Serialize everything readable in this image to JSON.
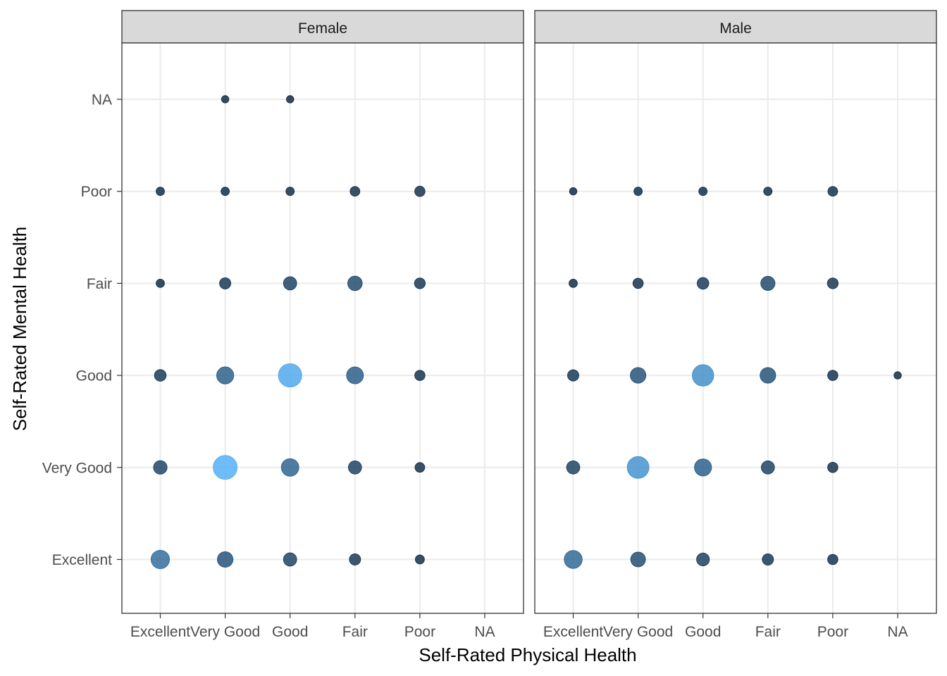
{
  "chart_data": {
    "type": "scatter",
    "xlabel": "Self-Rated Physical Health",
    "ylabel": "Self-Rated Mental Health",
    "x_categories": [
      "Excellent",
      "Very Good",
      "Good",
      "Fair",
      "Poor",
      "NA"
    ],
    "y_categories": [
      "Excellent",
      "Very Good",
      "Good",
      "Fair",
      "Poor",
      "NA"
    ],
    "grid": true,
    "legend": "none",
    "color_scale": {
      "low": "#132b43",
      "high": "#56b1f7"
    },
    "panels": [
      {
        "label": "Female",
        "points": [
          {
            "x": "Very Good",
            "y": "NA",
            "n": 1
          },
          {
            "x": "Good",
            "y": "NA",
            "n": 1
          },
          {
            "x": "Excellent",
            "y": "Poor",
            "n": 2
          },
          {
            "x": "Very Good",
            "y": "Poor",
            "n": 2
          },
          {
            "x": "Good",
            "y": "Poor",
            "n": 2
          },
          {
            "x": "Fair",
            "y": "Poor",
            "n": 4
          },
          {
            "x": "Poor",
            "y": "Poor",
            "n": 5
          },
          {
            "x": "Excellent",
            "y": "Fair",
            "n": 2
          },
          {
            "x": "Very Good",
            "y": "Fair",
            "n": 7
          },
          {
            "x": "Good",
            "y": "Fair",
            "n": 12
          },
          {
            "x": "Fair",
            "y": "Fair",
            "n": 16
          },
          {
            "x": "Poor",
            "y": "Fair",
            "n": 6
          },
          {
            "x": "Excellent",
            "y": "Good",
            "n": 8
          },
          {
            "x": "Very Good",
            "y": "Good",
            "n": 26
          },
          {
            "x": "Good",
            "y": "Good",
            "n": 60
          },
          {
            "x": "Fair",
            "y": "Good",
            "n": 25
          },
          {
            "x": "Poor",
            "y": "Good",
            "n": 5
          },
          {
            "x": "Excellent",
            "y": "Very Good",
            "n": 13
          },
          {
            "x": "Very Good",
            "y": "Very Good",
            "n": 64
          },
          {
            "x": "Good",
            "y": "Very Good",
            "n": 28
          },
          {
            "x": "Fair",
            "y": "Very Good",
            "n": 12
          },
          {
            "x": "Poor",
            "y": "Very Good",
            "n": 4
          },
          {
            "x": "Excellent",
            "y": "Excellent",
            "n": 32
          },
          {
            "x": "Very Good",
            "y": "Excellent",
            "n": 20
          },
          {
            "x": "Good",
            "y": "Excellent",
            "n": 12
          },
          {
            "x": "Fair",
            "y": "Excellent",
            "n": 7
          },
          {
            "x": "Poor",
            "y": "Excellent",
            "n": 3
          }
        ]
      },
      {
        "label": "Male",
        "points": [
          {
            "x": "Excellent",
            "y": "Poor",
            "n": 1
          },
          {
            "x": "Very Good",
            "y": "Poor",
            "n": 2
          },
          {
            "x": "Good",
            "y": "Poor",
            "n": 2
          },
          {
            "x": "Fair",
            "y": "Poor",
            "n": 2
          },
          {
            "x": "Poor",
            "y": "Poor",
            "n": 4
          },
          {
            "x": "Excellent",
            "y": "Fair",
            "n": 2
          },
          {
            "x": "Very Good",
            "y": "Fair",
            "n": 5
          },
          {
            "x": "Good",
            "y": "Fair",
            "n": 8
          },
          {
            "x": "Fair",
            "y": "Fair",
            "n": 15
          },
          {
            "x": "Poor",
            "y": "Fair",
            "n": 6
          },
          {
            "x": "Excellent",
            "y": "Good",
            "n": 7
          },
          {
            "x": "Very Good",
            "y": "Good",
            "n": 20
          },
          {
            "x": "Good",
            "y": "Good",
            "n": 48
          },
          {
            "x": "Fair",
            "y": "Good",
            "n": 20
          },
          {
            "x": "Poor",
            "y": "Good",
            "n": 5
          },
          {
            "x": "NA",
            "y": "Good",
            "n": 1
          },
          {
            "x": "Excellent",
            "y": "Very Good",
            "n": 12
          },
          {
            "x": "Very Good",
            "y": "Very Good",
            "n": 50
          },
          {
            "x": "Good",
            "y": "Very Good",
            "n": 26
          },
          {
            "x": "Fair",
            "y": "Very Good",
            "n": 12
          },
          {
            "x": "Poor",
            "y": "Very Good",
            "n": 5
          },
          {
            "x": "Excellent",
            "y": "Excellent",
            "n": 30
          },
          {
            "x": "Very Good",
            "y": "Excellent",
            "n": 17
          },
          {
            "x": "Good",
            "y": "Excellent",
            "n": 11
          },
          {
            "x": "Fair",
            "y": "Excellent",
            "n": 7
          },
          {
            "x": "Poor",
            "y": "Excellent",
            "n": 5
          }
        ]
      }
    ]
  }
}
